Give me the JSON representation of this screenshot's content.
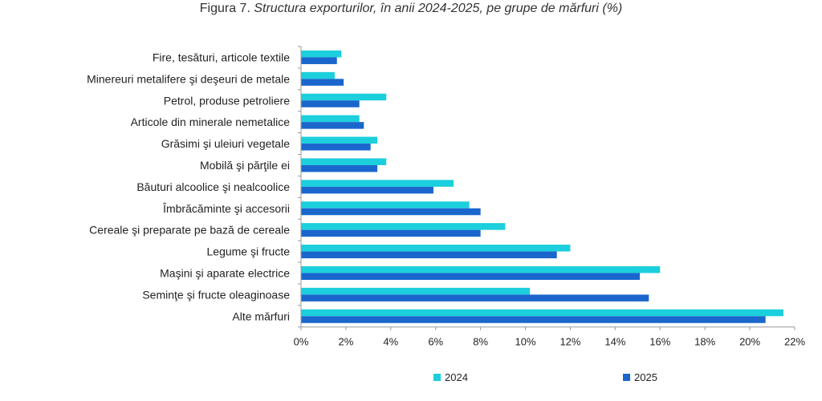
{
  "figure": {
    "prefix": "Figura 7. ",
    "title_italic": "Structura exporturilor, în anii 2024-2025, pe grupe de mărfuri (%)"
  },
  "colors": {
    "s2024": "#1ccfdc",
    "s2025": "#1a66cc",
    "axis": "#999999"
  },
  "chart_data": {
    "type": "bar",
    "orientation": "horizontal",
    "title": "Figura 7. Structura exporturilor, în anii 2024-2025, pe grupe de mărfuri (%)",
    "categories": [
      "Fire, tesături, articole textile",
      "Minereuri metalifere şi deşeuri de metale",
      "Petrol, produse petroliere",
      "Articole din minerale nemetalice",
      "Grăsimi şi uleiuri vegetale",
      "Mobilă şi părţile ei",
      "Băuturi alcoolice şi nealcoolice",
      "Îmbrăcăminte şi accesorii",
      "Cereale şi preparate pe bază de cereale",
      "Legume şi fructe",
      "Maşini şi aparate electrice",
      "Seminţe şi fructe oleaginoase",
      "Alte mărfuri"
    ],
    "series": [
      {
        "name": "2024",
        "values": [
          1.8,
          1.5,
          3.8,
          2.6,
          3.4,
          3.8,
          6.8,
          7.5,
          9.1,
          12.0,
          16.0,
          10.2,
          21.5
        ]
      },
      {
        "name": "2025",
        "values": [
          1.6,
          1.9,
          2.6,
          2.8,
          3.1,
          3.4,
          5.9,
          8.0,
          8.0,
          11.4,
          15.1,
          15.5,
          20.7
        ]
      }
    ],
    "xlim": [
      0,
      22
    ],
    "xticks": [
      "0%",
      "2%",
      "4%",
      "6%",
      "8%",
      "10%",
      "12%",
      "14%",
      "16%",
      "18%",
      "20%",
      "22%"
    ],
    "xlabel": "",
    "ylabel": "",
    "legend": [
      "2024",
      "2025"
    ],
    "legend_position": "bottom"
  }
}
